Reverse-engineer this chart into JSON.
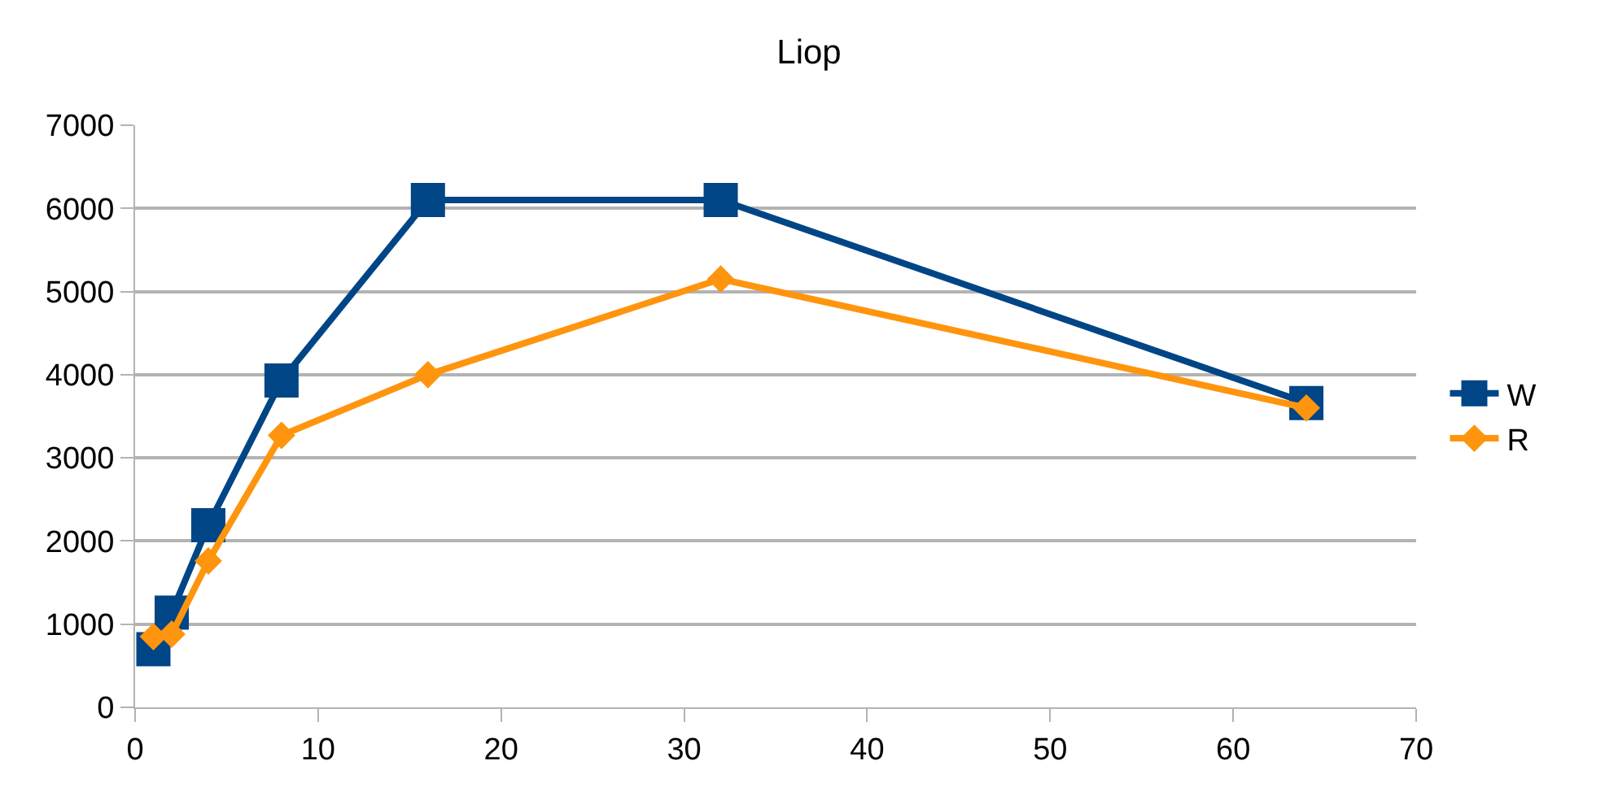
{
  "chart_data": {
    "type": "line",
    "title": "Liop",
    "x": [
      1,
      2,
      4,
      8,
      16,
      32,
      64
    ],
    "series": [
      {
        "name": "W",
        "color": "#004586",
        "values": [
          700,
          1140,
          2190,
          3930,
          6100,
          6100,
          3660
        ],
        "marker": "square"
      },
      {
        "name": "R",
        "color": "#ff950e",
        "values": [
          850,
          880,
          1760,
          3270,
          4000,
          5150,
          3600
        ],
        "marker": "diamond"
      }
    ],
    "xlim": [
      0,
      70
    ],
    "xticks": [
      0,
      10,
      20,
      30,
      40,
      50,
      60,
      70
    ],
    "ylim": [
      0,
      7000
    ],
    "yticks": [
      0,
      1000,
      2000,
      3000,
      4000,
      5000,
      6000,
      7000
    ],
    "grid": "y",
    "legend": "right",
    "line_style": "solid"
  }
}
